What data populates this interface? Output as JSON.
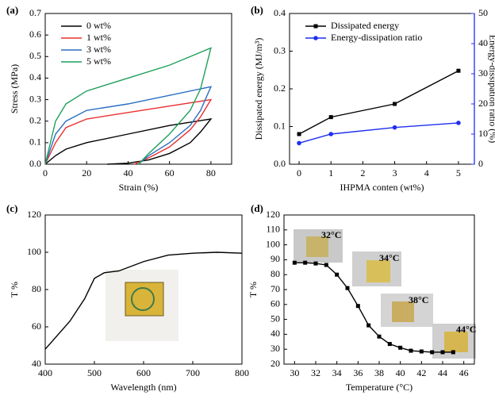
{
  "chart_data": [
    {
      "type": "line",
      "panel_label": "(a)",
      "xlabel": "Strain (%)",
      "ylabel": "Stress (MPa)",
      "xlim": [
        0,
        90
      ],
      "xticks": [
        0,
        20,
        40,
        60,
        80
      ],
      "ylim": [
        0,
        0.7
      ],
      "yticks": [
        {
          "value": 0,
          "label": "0.0"
        },
        0.1,
        0.2,
        0.3,
        0.4,
        0.5,
        0.6,
        0.7
      ],
      "legend": "upper left",
      "series": [
        {
          "name": "0 wt%",
          "color": "#000000",
          "x": [
            0,
            5,
            10,
            20,
            40,
            60,
            80,
            75,
            70,
            60,
            50,
            40,
            30
          ],
          "values": [
            0,
            0.04,
            0.07,
            0.1,
            0.14,
            0.18,
            0.21,
            0.15,
            0.1,
            0.05,
            0.02,
            0.005,
            0
          ]
        },
        {
          "name": "1 wt%",
          "color": "#e8312f",
          "x": [
            0,
            5,
            10,
            20,
            40,
            60,
            80,
            75,
            70,
            60,
            50,
            43
          ],
          "values": [
            0,
            0.1,
            0.17,
            0.21,
            0.24,
            0.27,
            0.3,
            0.22,
            0.16,
            0.08,
            0.03,
            0
          ]
        },
        {
          "name": "3 wt%",
          "color": "#2a6fc0",
          "x": [
            0,
            5,
            10,
            20,
            40,
            60,
            80,
            75,
            70,
            60,
            50,
            45
          ],
          "values": [
            0,
            0.14,
            0.2,
            0.25,
            0.28,
            0.32,
            0.36,
            0.25,
            0.18,
            0.1,
            0.04,
            0
          ]
        },
        {
          "name": "5 wt%",
          "color": "#1fa05a",
          "x": [
            0,
            5,
            10,
            20,
            40,
            60,
            80,
            75,
            70,
            60,
            50,
            45
          ],
          "values": [
            0,
            0.2,
            0.28,
            0.34,
            0.4,
            0.46,
            0.54,
            0.35,
            0.25,
            0.14,
            0.05,
            0
          ]
        }
      ]
    },
    {
      "type": "line",
      "panel_label": "(b)",
      "xlabel": "IHPMA conten (wt%)",
      "ylabel": "Dissipated energy (MJ/m³)",
      "y2label": "Energy-dissipation ratio (%)",
      "x": [
        0,
        1,
        3,
        5
      ],
      "xlim": [
        -0.3,
        5.5
      ],
      "xticks": [
        0,
        1,
        2,
        3,
        4,
        5
      ],
      "ylim": [
        0,
        0.4
      ],
      "yticks": [
        {
          "value": 0,
          "label": "0.0"
        },
        0.1,
        0.2,
        0.3,
        0.4
      ],
      "y2lim": [
        0,
        50
      ],
      "y2ticks": [
        0,
        10,
        20,
        30,
        40,
        50
      ],
      "legend": "upper left",
      "series": [
        {
          "name": "Dissipated energy",
          "color": "#000000",
          "marker": "square",
          "values": [
            0.08,
            0.125,
            0.16,
            0.248
          ]
        },
        {
          "name": "Energy-dissipation ratio",
          "color": "#1f2ff0",
          "marker": "circle",
          "axis": "y2",
          "values": [
            7,
            10,
            12.2,
            13.7
          ]
        }
      ]
    },
    {
      "type": "line",
      "panel_label": "(c)",
      "xlabel": "Wavelength (nm)",
      "ylabel": "T %",
      "x": [
        400,
        450,
        480,
        500,
        520,
        550,
        600,
        650,
        700,
        750,
        800
      ],
      "xlim": [
        400,
        800
      ],
      "xticks": [
        400,
        500,
        600,
        700,
        800
      ],
      "ylim": [
        40,
        120
      ],
      "yticks": [
        40,
        60,
        80,
        100,
        120
      ],
      "series": [
        {
          "color": "#000000",
          "values": [
            48,
            63,
            75,
            86,
            89,
            90,
            95,
            98.5,
            99.5,
            100,
            99.5
          ]
        }
      ]
    },
    {
      "type": "line",
      "panel_label": "(d)",
      "xlabel": "Temperature (°C)",
      "ylabel": "T %",
      "x": [
        30,
        31,
        32,
        33,
        34,
        35,
        36,
        37,
        38,
        39,
        40,
        41,
        42,
        43,
        44,
        45
      ],
      "xlim": [
        29,
        47
      ],
      "xticks": [
        30,
        32,
        34,
        36,
        38,
        40,
        42,
        44,
        46
      ],
      "ylim": [
        20,
        120
      ],
      "yticks": [
        20,
        30,
        40,
        50,
        60,
        70,
        80,
        90,
        100,
        110,
        120
      ],
      "annotations": [
        "32°C",
        "34°C",
        "38°C",
        "44°C"
      ],
      "series": [
        {
          "color": "#000000",
          "marker": "square",
          "values": [
            88,
            88,
            87.5,
            86.5,
            80,
            71,
            59,
            46,
            38.5,
            33.5,
            31,
            29,
            28.5,
            28,
            28,
            28
          ]
        }
      ]
    }
  ]
}
